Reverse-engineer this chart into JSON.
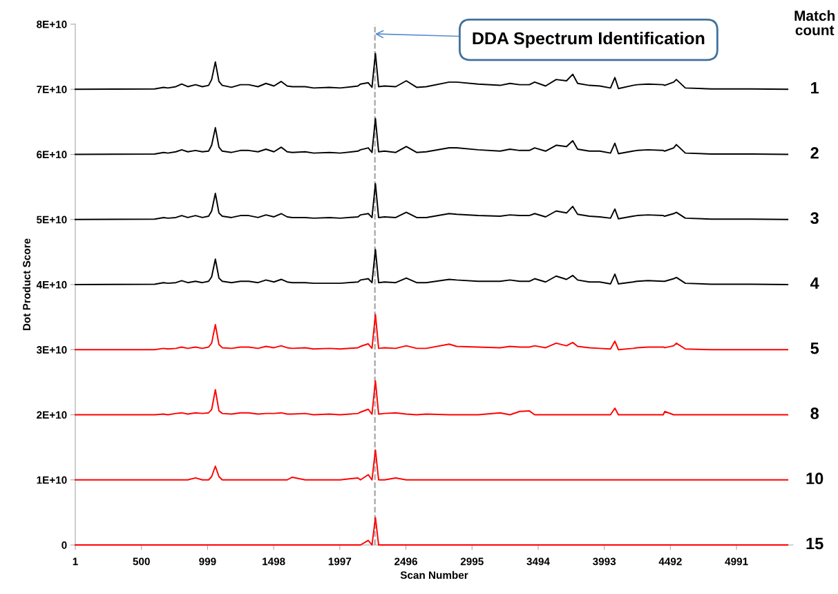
{
  "chart_data": {
    "type": "line",
    "xlabel": "Scan Number",
    "ylabel": "Dot Product Score",
    "x": [
      1,
      600,
      667,
      700,
      760,
      804,
      850,
      908,
      960,
      1007,
      1030,
      1058,
      1085,
      1110,
      1180,
      1247,
      1310,
      1380,
      1440,
      1500,
      1555,
      1600,
      1638,
      1736,
      1800,
      1920,
      2000,
      2134,
      2153,
      2212,
      2240,
      2266,
      2290,
      2335,
      2419,
      2499,
      2577,
      2650,
      2822,
      2879,
      3041,
      3207,
      3281,
      3354,
      3427,
      3468,
      3550,
      3630,
      3708,
      3755,
      3792,
      3880,
      3959,
      4040,
      4073,
      4100,
      4209,
      4240,
      4323,
      4438,
      4449,
      4517,
      4537,
      4605,
      4800,
      5100,
      5377
    ],
    "series": [
      {
        "name": "1",
        "color": "#000000",
        "values": [
          70000000000.0,
          70050000000.0,
          70300000000.0,
          70200000000.0,
          70400000000.0,
          70800000000.0,
          70400000000.0,
          70700000000.0,
          70400000000.0,
          70600000000.0,
          71500000000.0,
          74200000000.0,
          71200000000.0,
          70600000000.0,
          70300000000.0,
          70700000000.0,
          70700000000.0,
          70400000000.0,
          70900000000.0,
          70500000000.0,
          71200000000.0,
          70500000000.0,
          70400000000.0,
          70400000000.0,
          70200000000.0,
          70300000000.0,
          70200000000.0,
          70500000000.0,
          70800000000.0,
          71000000000.0,
          70300000000.0,
          75500000000.0,
          70400000000.0,
          70500000000.0,
          70400000000.0,
          71300000000.0,
          70300000000.0,
          70400000000.0,
          71100000000.0,
          71100000000.0,
          70800000000.0,
          70600000000.0,
          70900000000.0,
          70700000000.0,
          70700000000.0,
          71100000000.0,
          70500000000.0,
          71500000000.0,
          71300000000.0,
          72300000000.0,
          70900000000.0,
          70600000000.0,
          70500000000.0,
          70200000000.0,
          71800000000.0,
          70100000000.0,
          70600000000.0,
          70700000000.0,
          70800000000.0,
          70700000000.0,
          70600000000.0,
          71100000000.0,
          71500000000.0,
          70200000000.0,
          70050000000.0,
          70050000000.0,
          70000000000.0
        ]
      },
      {
        "name": "2",
        "color": "#000000",
        "values": [
          60000000000.0,
          60050000000.0,
          60300000000.0,
          60200000000.0,
          60400000000.0,
          60700000000.0,
          60400000000.0,
          60600000000.0,
          60400000000.0,
          60500000000.0,
          61400000000.0,
          64100000000.0,
          61100000000.0,
          60500000000.0,
          60300000000.0,
          60600000000.0,
          60600000000.0,
          60400000000.0,
          60800000000.0,
          60400000000.0,
          61100000000.0,
          60400000000.0,
          60300000000.0,
          60400000000.0,
          60200000000.0,
          60300000000.0,
          60200000000.0,
          60500000000.0,
          60700000000.0,
          61000000000.0,
          60300000000.0,
          65500000000.0,
          60400000000.0,
          60500000000.0,
          60300000000.0,
          61200000000.0,
          60300000000.0,
          60400000000.0,
          61000000000.0,
          61000000000.0,
          60700000000.0,
          60500000000.0,
          60800000000.0,
          60600000000.0,
          60600000000.0,
          61000000000.0,
          60500000000.0,
          61400000000.0,
          61200000000.0,
          62100000000.0,
          60800000000.0,
          60500000000.0,
          60500000000.0,
          60200000000.0,
          61700000000.0,
          60100000000.0,
          60500000000.0,
          60600000000.0,
          60700000000.0,
          60600000000.0,
          60500000000.0,
          61000000000.0,
          61500000000.0,
          60200000000.0,
          60050000000.0,
          60050000000.0,
          60000000000.0
        ]
      },
      {
        "name": "3",
        "color": "#000000",
        "values": [
          50000000000.0,
          50050000000.0,
          50300000000.0,
          50200000000.0,
          50300000000.0,
          50600000000.0,
          50300000000.0,
          50600000000.0,
          50300000000.0,
          50500000000.0,
          51300000000.0,
          54000000000.0,
          51000000000.0,
          50500000000.0,
          50300000000.0,
          50600000000.0,
          50600000000.0,
          50300000000.0,
          50700000000.0,
          50400000000.0,
          50900000000.0,
          50400000000.0,
          50300000000.0,
          50300000000.0,
          50200000000.0,
          50300000000.0,
          50200000000.0,
          50400000000.0,
          50700000000.0,
          50900000000.0,
          50300000000.0,
          55500000000.0,
          50300000000.0,
          50400000000.0,
          50300000000.0,
          51100000000.0,
          50300000000.0,
          50300000000.0,
          50900000000.0,
          50800000000.0,
          50600000000.0,
          50500000000.0,
          50700000000.0,
          50600000000.0,
          50600000000.0,
          50900000000.0,
          50400000000.0,
          51300000000.0,
          51000000000.0,
          52000000000.0,
          50800000000.0,
          50500000000.0,
          50400000000.0,
          50200000000.0,
          51600000000.0,
          50100000000.0,
          50500000000.0,
          50600000000.0,
          50700000000.0,
          50600000000.0,
          50500000000.0,
          50900000000.0,
          51100000000.0,
          50200000000.0,
          50050000000.0,
          50050000000.0,
          50000000000.0
        ]
      },
      {
        "name": "4",
        "color": "#000000",
        "values": [
          40000000000.0,
          40050000000.0,
          40300000000.0,
          40200000000.0,
          40300000000.0,
          40600000000.0,
          40300000000.0,
          40500000000.0,
          40300000000.0,
          40500000000.0,
          41200000000.0,
          43900000000.0,
          41000000000.0,
          40500000000.0,
          40300000000.0,
          40500000000.0,
          40500000000.0,
          40300000000.0,
          40700000000.0,
          40400000000.0,
          40800000000.0,
          40400000000.0,
          40300000000.0,
          40300000000.0,
          40200000000.0,
          40200000000.0,
          40200000000.0,
          40400000000.0,
          40700000000.0,
          40900000000.0,
          40300000000.0,
          45400000000.0,
          40300000000.0,
          40400000000.0,
          40300000000.0,
          41000000000.0,
          40300000000.0,
          40300000000.0,
          40800000000.0,
          40700000000.0,
          40500000000.0,
          40500000000.0,
          40700000000.0,
          40500000000.0,
          40500000000.0,
          40900000000.0,
          40400000000.0,
          41300000000.0,
          40800000000.0,
          41400000000.0,
          40700000000.0,
          40400000000.0,
          40400000000.0,
          40100000000.0,
          41600000000.0,
          40100000000.0,
          40400000000.0,
          40500000000.0,
          40600000000.0,
          40500000000.0,
          40500000000.0,
          40900000000.0,
          41100000000.0,
          40200000000.0,
          40050000000.0,
          40050000000.0,
          40000000000.0
        ]
      },
      {
        "name": "5",
        "color": "#ff0000",
        "values": [
          30000000000.0,
          30000000000.0,
          30200000000.0,
          30100000000.0,
          30200000000.0,
          30400000000.0,
          30200000000.0,
          30400000000.0,
          30200000000.0,
          30400000000.0,
          31000000000.0,
          33850000000.0,
          30800000000.0,
          30300000000.0,
          30200000000.0,
          30400000000.0,
          30400000000.0,
          30200000000.0,
          30500000000.0,
          30300000000.0,
          30600000000.0,
          30300000000.0,
          30200000000.0,
          30300000000.0,
          30100000000.0,
          30200000000.0,
          30100000000.0,
          30300000000.0,
          30500000000.0,
          30900000000.0,
          30200000000.0,
          35400000000.0,
          30200000000.0,
          30300000000.0,
          30200000000.0,
          30600000000.0,
          30200000000.0,
          30200000000.0,
          30850000000.0,
          30500000000.0,
          30400000000.0,
          30300000000.0,
          30500000000.0,
          30400000000.0,
          30400000000.0,
          30600000000.0,
          30300000000.0,
          31000000000.0,
          30600000000.0,
          31100000000.0,
          30500000000.0,
          30300000000.0,
          30200000000.0,
          30100000000.0,
          31300000000.0,
          30000000000.0,
          30200000000.0,
          30300000000.0,
          30400000000.0,
          30400000000.0,
          30300000000.0,
          30600000000.0,
          31000000000.0,
          30100000000.0,
          30000000000.0,
          30000000000.0,
          30000000000.0
        ]
      },
      {
        "name": "8",
        "color": "#ff0000",
        "values": [
          20000000000.0,
          20000000000.0,
          20100000000.0,
          20000000000.0,
          20200000000.0,
          20300000000.0,
          20100000000.0,
          20300000000.0,
          20200000000.0,
          20300000000.0,
          20800000000.0,
          23850000000.0,
          20600000000.0,
          20200000000.0,
          20100000000.0,
          20300000000.0,
          20300000000.0,
          20100000000.0,
          20200000000.0,
          20200000000.0,
          20300000000.0,
          20100000000.0,
          20100000000.0,
          20200000000.0,
          20000000000.0,
          20100000000.0,
          20000000000.0,
          20200000000.0,
          20400000000.0,
          20850000000.0,
          20100000000.0,
          25200000000.0,
          20100000000.0,
          20200000000.0,
          20300000000.0,
          20100000000.0,
          20000000000.0,
          20100000000.0,
          20000000000.0,
          20000000000.0,
          20000000000.0,
          20300000000.0,
          20000000000.0,
          20500000000.0,
          20600000000.0,
          20000000000.0,
          20000000000.0,
          20000000000.0,
          20000000000.0,
          20000000000.0,
          20000000000.0,
          20000000000.0,
          20000000000.0,
          20000000000.0,
          21000000000.0,
          20000000000.0,
          20000000000.0,
          20000000000.0,
          20000000000.0,
          20000000000.0,
          20500000000.0,
          20000000000.0,
          20000000000.0,
          20000000000.0,
          20000000000.0,
          20000000000.0,
          20000000000.0
        ]
      },
      {
        "name": "10",
        "color": "#ff0000",
        "values": [
          10000000000.0,
          10000000000.0,
          10000000000.0,
          10000000000.0,
          10000000000.0,
          10000000000.0,
          10000000000.0,
          10300000000.0,
          10000000000.0,
          10000000000.0,
          10500000000.0,
          12100000000.0,
          10500000000.0,
          10000000000.0,
          10000000000.0,
          10000000000.0,
          10000000000.0,
          10000000000.0,
          10000000000.0,
          10000000000.0,
          10000000000.0,
          10000000000.0,
          10400000000.0,
          10000000000.0,
          10000000000.0,
          10000000000.0,
          10000000000.0,
          10300000000.0,
          10000000000.0,
          10800000000.0,
          10000000000.0,
          14600000000.0,
          10000000000.0,
          10000000000.0,
          10300000000.0,
          10000000000.0,
          10000000000.0,
          10000000000.0,
          10000000000.0,
          10000000000.0,
          10000000000.0,
          10000000000.0,
          10000000000.0,
          10000000000.0,
          10000000000.0,
          10000000000.0,
          10000000000.0,
          10000000000.0,
          10000000000.0,
          10000000000.0,
          10000000000.0,
          10000000000.0,
          10000000000.0,
          10000000000.0,
          10000000000.0,
          10000000000.0,
          10000000000.0,
          10000000000.0,
          10000000000.0,
          10000000000.0,
          10000000000.0,
          10000000000.0,
          10000000000.0,
          10000000000.0,
          10000000000.0,
          10000000000.0,
          10000000000.0
        ]
      },
      {
        "name": "15",
        "color": "#ff0000",
        "values": [
          0,
          0,
          0,
          0,
          0,
          0,
          0,
          0,
          0,
          0,
          0,
          0,
          0,
          0,
          0,
          0,
          0,
          0,
          0,
          0,
          0,
          0,
          0,
          0,
          0,
          0,
          0,
          0,
          0,
          700000000.0,
          0,
          4200000000.0,
          0,
          0,
          0,
          0,
          0,
          0,
          0,
          0,
          0,
          0,
          0,
          0,
          0,
          0,
          0,
          0,
          0,
          0,
          0,
          0,
          0,
          0,
          0,
          0,
          0,
          0,
          0,
          0,
          0,
          0,
          0,
          0,
          0,
          0,
          0
        ]
      }
    ],
    "xlim": [
      1,
      5418
    ],
    "xticks": [
      1,
      500,
      999,
      1498,
      1997,
      2496,
      2995,
      3494,
      3993,
      4492,
      4991
    ],
    "ylim": [
      0,
      80000000000.0
    ],
    "yticks": [
      {
        "value": 0,
        "label": "0"
      },
      {
        "value": 10000000000.0,
        "label": "1E+10"
      },
      {
        "value": 20000000000.0,
        "label": "2E+10"
      },
      {
        "value": 30000000000.0,
        "label": "3E+10"
      },
      {
        "value": 40000000000.0,
        "label": "4E+10"
      },
      {
        "value": 50000000000.0,
        "label": "5E+10"
      },
      {
        "value": 60000000000.0,
        "label": "6E+10"
      },
      {
        "value": 70000000000.0,
        "label": "7E+10"
      },
      {
        "value": 80000000000.0,
        "label": "8E+10"
      }
    ],
    "ref_lines": [
      {
        "axis": "x",
        "value": 2262,
        "color": "#a6a6a6",
        "line_style": "dashed"
      }
    ],
    "annotations": [
      {
        "text": "DDA Spectrum Identification",
        "x": 2262,
        "y": 78500000000.0
      },
      "Match\ncount"
    ],
    "marker": "none",
    "line_style": "solid"
  }
}
